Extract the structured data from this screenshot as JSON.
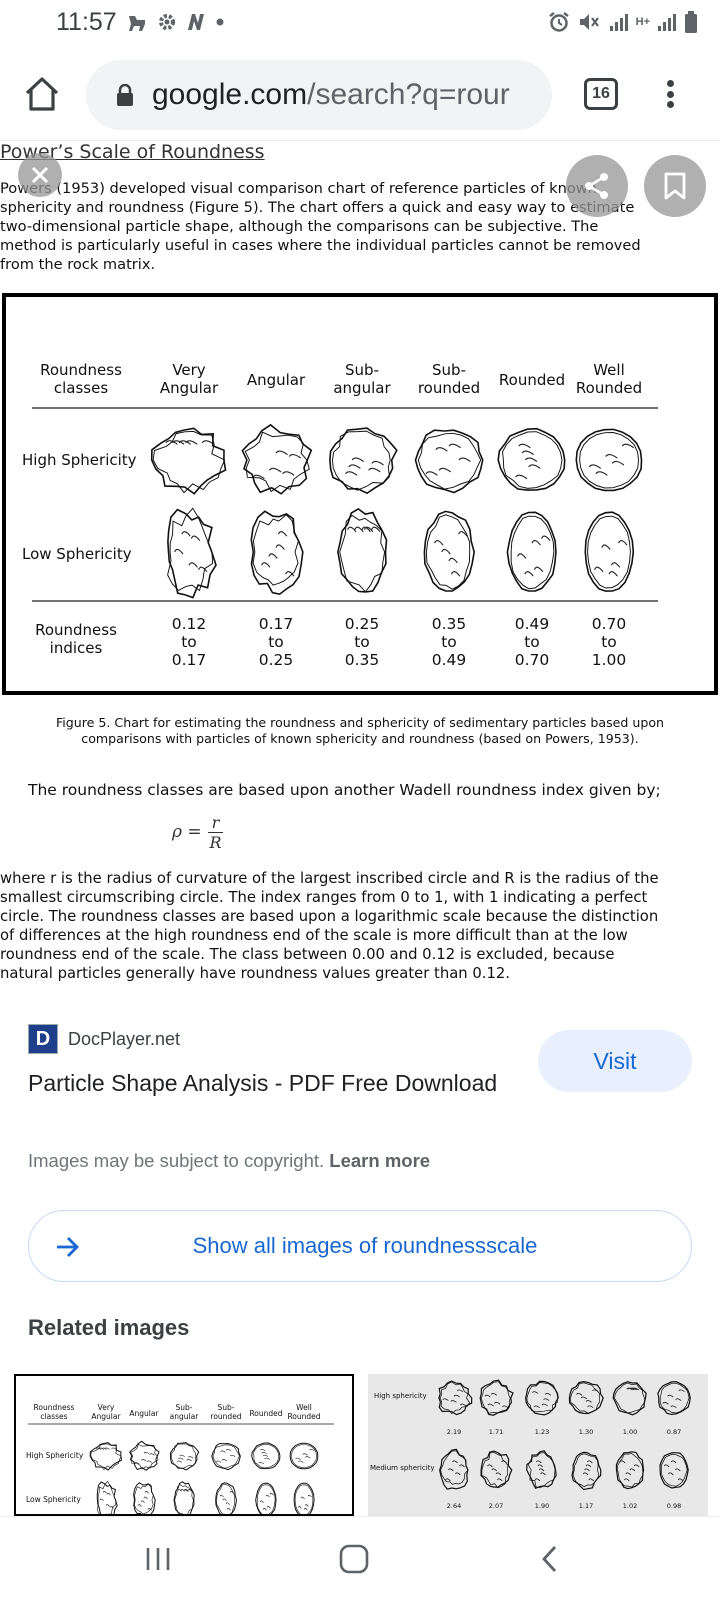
{
  "status_bar": {
    "time": "11:57",
    "network_label": "H+"
  },
  "browser": {
    "url_domain": "google.com",
    "url_path": "/search?q=rour",
    "tab_count": "16"
  },
  "document": {
    "heading": "Power’s Scale of Roundness",
    "paragraph_lines": [
      "Powers (1953) developed visual comparison chart of reference particles of known",
      "sphericity and roundness (Figure 5).  The chart offers a quick and easy way to estimate",
      "two-dimensional particle shape, although the comparisons can be subjective.  The",
      "method is particularly useful in cases where the individual particles cannot be removed",
      "from the rock matrix."
    ],
    "figure": {
      "header_labels": [
        [
          "Roundness",
          "classes"
        ],
        [
          "Very",
          "Angular"
        ],
        [
          "Angular"
        ],
        [
          "Sub-",
          "angular"
        ],
        [
          "Sub-",
          "rounded"
        ],
        [
          "Rounded"
        ],
        [
          "Well",
          "Rounded"
        ]
      ],
      "row_labels": [
        "High Sphericity",
        "Low Sphericity"
      ],
      "indices_label": [
        "Roundness",
        "indices"
      ],
      "indices": [
        [
          "0.12",
          "to",
          "0.17"
        ],
        [
          "0.17",
          "to",
          "0.25"
        ],
        [
          "0.25",
          "to",
          "0.35"
        ],
        [
          "0.35",
          "to",
          "0.49"
        ],
        [
          "0.49",
          "to",
          "0.70"
        ],
        [
          "0.70",
          "to",
          "1.00"
        ]
      ]
    },
    "caption_line1": "Figure 5.  Chart for estimating the roundness and sphericity of sedimentary particles based upon",
    "caption_line2": "comparisons with particles of known sphericity and roundness (based on Powers, 1953).",
    "wadell_text": "The roundness classes are based upon another Wadell roundness index given by;",
    "formula_lhs": "ρ =",
    "formula_num": "r",
    "formula_den": "R",
    "after_lines": [
      "where r is the radius of curvature of the largest inscribed circle and R is the radius of the",
      "smallest circumscribing circle.  The index ranges from 0 to 1, with 1 indicating a perfect",
      "circle.  The roundness classes are based upon a logarithmic scale because the distinction",
      "of differences at the high roundness end of the scale is more difficult than at the low",
      "roundness end of the scale.  The class between 0.00 and 0.12 is excluded, because",
      "natural particles generally have roundness values greater than 0.12."
    ]
  },
  "result": {
    "favicon_letter": "D",
    "source": "DocPlayer.net",
    "title": "Particle Shape Analysis - PDF Free Download",
    "visit_label": "Visit",
    "copyright_text": "Images may be subject to copyright.",
    "learn_more": "Learn more",
    "show_all_label": "Show all images of roundnessscale",
    "related_title": "Related images"
  },
  "related_thumb1": {
    "header_labels": [
      "Roundness classes",
      "Very Angular",
      "Angular",
      "Sub- angular",
      "Sub- rounded",
      "Rounded",
      "Well Rounded"
    ],
    "row_labels": [
      "High Sphericity",
      "Low Sphericity"
    ]
  },
  "related_thumb2": {
    "row_labels": [
      "High sphericity",
      "Medium sphericity"
    ],
    "row1_values": [
      "2.19",
      "1.71",
      "1.23",
      "1.30",
      "1.00",
      "0.87"
    ],
    "row2_values": [
      "2.64",
      "2.07",
      "1.90",
      "1.17",
      "1.02",
      "0.98"
    ]
  },
  "colors": {
    "accent": "#1967d2",
    "visit_bg": "#e8f0fe",
    "favicon_bg": "#1f3f8a"
  }
}
